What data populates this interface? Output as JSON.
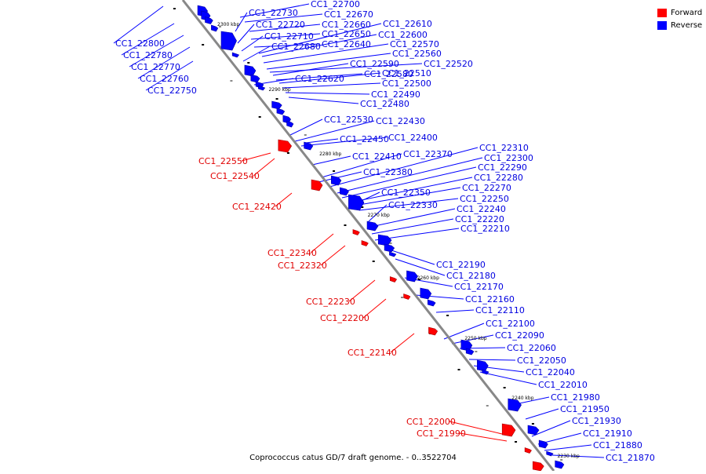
{
  "colors": {
    "forward": "#ff0000",
    "reverse": "#0000ff",
    "backbone": "#888888"
  },
  "legend": [
    {
      "label": "Forward",
      "color": "#ff0000"
    },
    {
      "label": "Reverse",
      "color": "#0000ff"
    }
  ],
  "caption": "Coprococcus catus GD/7 draft genome. - 0..3522704",
  "kbp_ticks": [
    "2300 kbp",
    "2290 kbp",
    "2280 kbp",
    "2270 kbp",
    "2260 kbp",
    "2250 kbp",
    "2240 kbp",
    "2230 kbp"
  ],
  "genes_forward": [
    "CC1_22550",
    "CC1_22540",
    "CC1_22420",
    "CC1_22340",
    "CC1_22320",
    "CC1_22230",
    "CC1_22200",
    "CC1_22140",
    "CC1_22000",
    "CC1_21990"
  ],
  "genes_reverse": [
    "CC1_22800",
    "CC1_22780",
    "CC1_22770",
    "CC1_22760",
    "CC1_22750",
    "CC1_22730",
    "CC1_22720",
    "CC1_22710",
    "CC1_22680",
    "CC1_22700",
    "CC1_22670",
    "CC1_22660",
    "CC1_22650",
    "CC1_22640",
    "CC1_22610",
    "CC1_22600",
    "CC1_22570",
    "CC1_22560",
    "CC1_22520",
    "CC1_22590",
    "CC1_22580",
    "CC1_22510",
    "CC1_22500",
    "CC1_22620",
    "CC1_22490",
    "CC1_22480",
    "CC1_22530",
    "CC1_22430",
    "CC1_22400",
    "CC1_22450",
    "CC1_22410",
    "CC1_22370",
    "CC1_22380",
    "CC1_22310",
    "CC1_22300",
    "CC1_22290",
    "CC1_22280",
    "CC1_22270",
    "CC1_22350",
    "CC1_22250",
    "CC1_22330",
    "CC1_22240",
    "CC1_22220",
    "CC1_22210",
    "CC1_22190",
    "CC1_22180",
    "CC1_22170",
    "CC1_22160",
    "CC1_22110",
    "CC1_22100",
    "CC1_22090",
    "CC1_22060",
    "CC1_22050",
    "CC1_22040",
    "CC1_22010",
    "CC1_21980",
    "CC1_21950",
    "CC1_21930",
    "CC1_21910",
    "CC1_21880",
    "CC1_21870"
  ]
}
